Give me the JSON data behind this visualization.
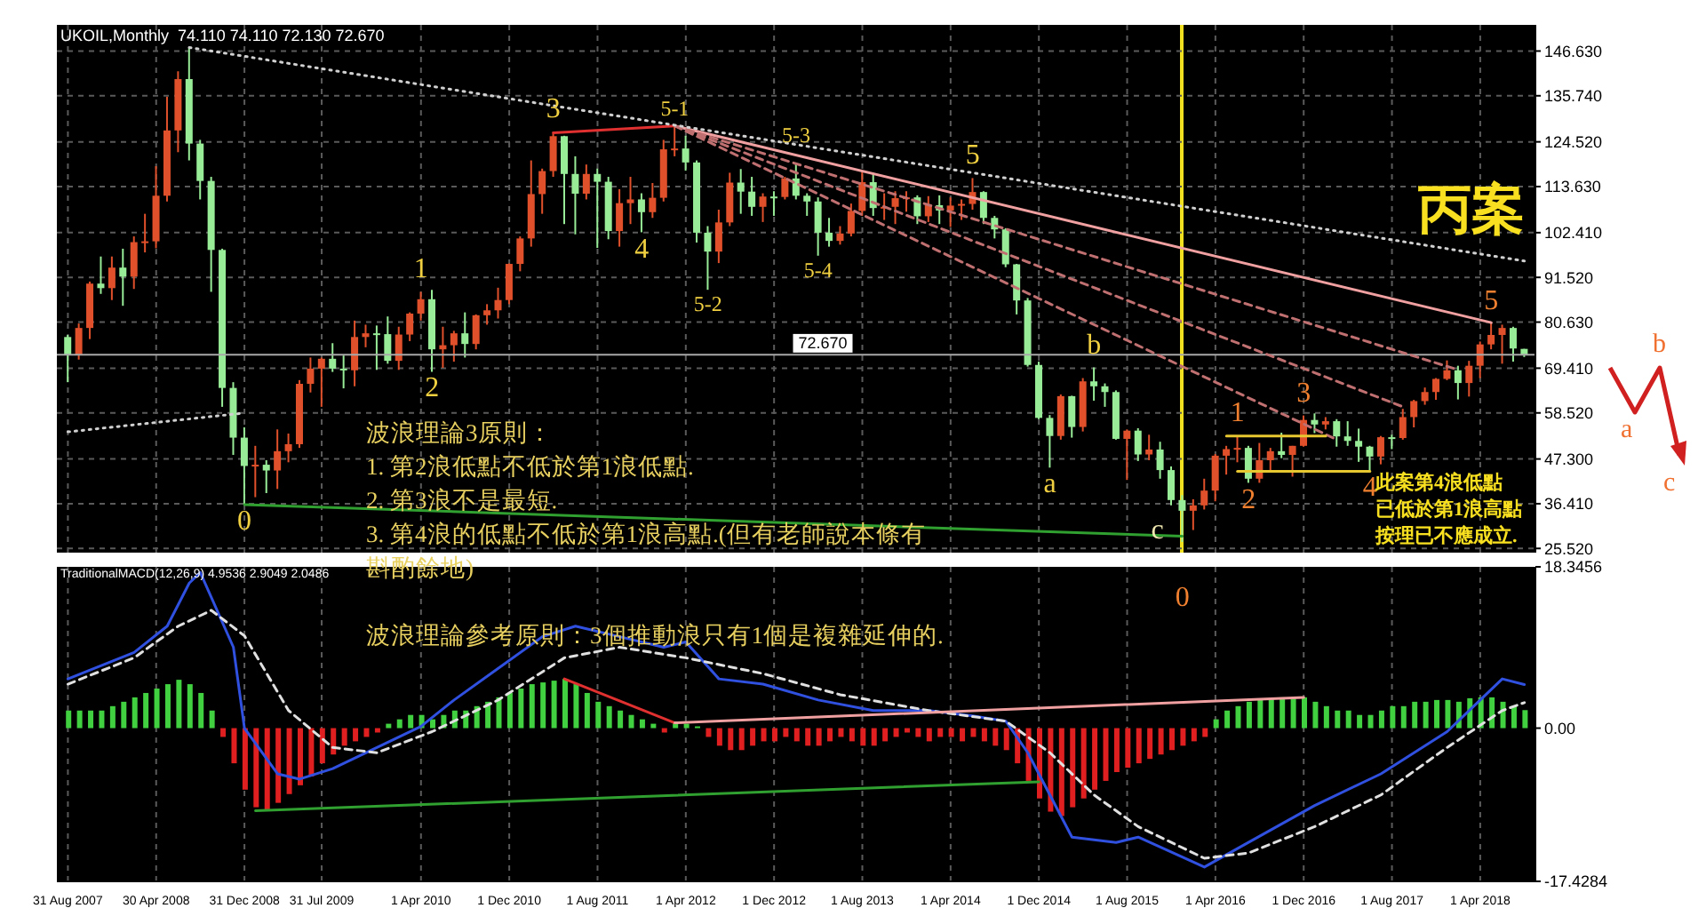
{
  "chart_data": [
    {
      "type": "candlestick",
      "title": "UKOIL,Monthly  74.110 74.110 72.130 72.670",
      "x": [
        "2007-08",
        "2007-09",
        "2007-10",
        "2007-11",
        "2007-12",
        "2008-01",
        "2008-02",
        "2008-03",
        "2008-04",
        "2008-05",
        "2008-06",
        "2008-07",
        "2008-08",
        "2008-09",
        "2008-10",
        "2008-11",
        "2008-12",
        "2009-01",
        "2009-02",
        "2009-03",
        "2009-04",
        "2009-05",
        "2009-06",
        "2009-07",
        "2009-08",
        "2009-09",
        "2009-10",
        "2009-11",
        "2009-12",
        "2010-01",
        "2010-02",
        "2010-03",
        "2010-04",
        "2010-05",
        "2010-06",
        "2010-07",
        "2010-08",
        "2010-09",
        "2010-10",
        "2010-11",
        "2010-12",
        "2011-01",
        "2011-02",
        "2011-03",
        "2011-04",
        "2011-05",
        "2011-06",
        "2011-07",
        "2011-08",
        "2011-09",
        "2011-10",
        "2011-11",
        "2011-12",
        "2012-01",
        "2012-02",
        "2012-03",
        "2012-04",
        "2012-05",
        "2012-06",
        "2012-07",
        "2012-08",
        "2012-09",
        "2012-10",
        "2012-11",
        "2012-12",
        "2013-01",
        "2013-02",
        "2013-03",
        "2013-04",
        "2013-05",
        "2013-06",
        "2013-07",
        "2013-08",
        "2013-09",
        "2013-10",
        "2013-11",
        "2013-12",
        "2014-01",
        "2014-02",
        "2014-03",
        "2014-04",
        "2014-05",
        "2014-06",
        "2014-07",
        "2014-08",
        "2014-09",
        "2014-10",
        "2014-11",
        "2014-12",
        "2015-01",
        "2015-02",
        "2015-03",
        "2015-04",
        "2015-05",
        "2015-06",
        "2015-07",
        "2015-08",
        "2015-09",
        "2015-10",
        "2015-11",
        "2015-12",
        "2016-01",
        "2016-02",
        "2016-03",
        "2016-04",
        "2016-05",
        "2016-06",
        "2016-07",
        "2016-08",
        "2016-09",
        "2016-10",
        "2016-11",
        "2016-12",
        "2017-01",
        "2017-02",
        "2017-03",
        "2017-04",
        "2017-05",
        "2017-06",
        "2017-07",
        "2017-08",
        "2017-09",
        "2017-10",
        "2017-11",
        "2017-12",
        "2018-01",
        "2018-02",
        "2018-03",
        "2018-04",
        "2018-05",
        "2018-06",
        "2018-07",
        "2018-08"
      ],
      "ohlc": [
        [
          77.0,
          77.5,
          66.0,
          72.7
        ],
        [
          72.7,
          80.3,
          71.5,
          79.2
        ],
        [
          79.2,
          90.5,
          76.5,
          90.0
        ],
        [
          90.0,
          96.6,
          87.5,
          88.9
        ],
        [
          88.9,
          96.6,
          86.0,
          93.9
        ],
        [
          93.9,
          98.5,
          84.6,
          91.7
        ],
        [
          91.7,
          101.5,
          88.7,
          100.1
        ],
        [
          100.1,
          107.0,
          97.6,
          100.3
        ],
        [
          100.3,
          118.6,
          98.6,
          111.4
        ],
        [
          111.4,
          135.5,
          110.0,
          127.3
        ],
        [
          127.3,
          141.7,
          122.0,
          139.8
        ],
        [
          139.8,
          147.5,
          120.0,
          124.1
        ],
        [
          124.1,
          125.0,
          110.5,
          115.0
        ],
        [
          115.0,
          116.0,
          88.0,
          98.2
        ],
        [
          98.2,
          98.5,
          60.0,
          64.6
        ],
        [
          64.6,
          66.0,
          48.3,
          52.5
        ],
        [
          52.5,
          55.0,
          36.2,
          45.6
        ],
        [
          45.6,
          50.5,
          38.0,
          45.9
        ],
        [
          45.9,
          47.0,
          39.0,
          44.5
        ],
        [
          44.5,
          54.5,
          40.0,
          49.2
        ],
        [
          49.2,
          53.5,
          46.5,
          50.9
        ],
        [
          50.9,
          66.5,
          50.0,
          65.6
        ],
        [
          65.6,
          72.0,
          63.5,
          69.3
        ],
        [
          69.3,
          72.0,
          60.0,
          71.7
        ],
        [
          71.7,
          75.5,
          68.5,
          69.3
        ],
        [
          69.3,
          72.5,
          64.5,
          68.9
        ],
        [
          68.9,
          81.0,
          65.0,
          77.0
        ],
        [
          77.0,
          80.0,
          74.5,
          77.9
        ],
        [
          77.9,
          79.8,
          69.0,
          77.7
        ],
        [
          77.7,
          82.0,
          70.5,
          71.2
        ],
        [
          71.2,
          79.5,
          69.0,
          77.6
        ],
        [
          77.6,
          83.0,
          76.0,
          82.7
        ],
        [
          82.7,
          88.0,
          81.0,
          86.2
        ],
        [
          86.2,
          88.5,
          68.5,
          74.0
        ],
        [
          74.0,
          79.5,
          69.5,
          75.0
        ],
        [
          75.0,
          78.5,
          71.0,
          77.9
        ],
        [
          77.9,
          83.0,
          72.0,
          75.3
        ],
        [
          75.3,
          82.5,
          74.0,
          82.3
        ],
        [
          82.3,
          85.0,
          80.0,
          83.5
        ],
        [
          83.5,
          89.0,
          81.5,
          86.0
        ],
        [
          86.0,
          94.9,
          85.0,
          94.8
        ],
        [
          94.8,
          101.5,
          93.0,
          101.0
        ],
        [
          101.0,
          120.0,
          99.0,
          111.8
        ],
        [
          111.8,
          118.0,
          107.0,
          117.4
        ],
        [
          117.4,
          127.0,
          116.0,
          125.9
        ],
        [
          125.9,
          126.0,
          104.5,
          116.7
        ],
        [
          116.7,
          121.0,
          102.0,
          111.9
        ],
        [
          111.9,
          119.0,
          110.5,
          116.7
        ],
        [
          116.7,
          118.0,
          98.7,
          114.8
        ],
        [
          114.8,
          116.0,
          100.8,
          102.8
        ],
        [
          102.8,
          113.0,
          99.0,
          109.6
        ],
        [
          109.6,
          116.0,
          104.5,
          110.5
        ],
        [
          110.5,
          112.0,
          102.5,
          107.4
        ],
        [
          107.4,
          114.5,
          106.0,
          110.9
        ],
        [
          110.9,
          125.0,
          110.0,
          122.7
        ],
        [
          122.7,
          128.4,
          121.0,
          122.9
        ],
        [
          122.9,
          126.0,
          117.5,
          119.5
        ],
        [
          119.5,
          120.0,
          100.0,
          102.4
        ],
        [
          102.4,
          104.0,
          88.5,
          97.8
        ],
        [
          97.8,
          108.0,
          95.0,
          104.9
        ],
        [
          104.9,
          117.0,
          104.0,
          114.6
        ],
        [
          114.6,
          117.9,
          107.0,
          112.4
        ],
        [
          112.4,
          116.0,
          106.5,
          108.7
        ],
        [
          108.7,
          112.0,
          105.0,
          111.2
        ],
        [
          111.2,
          112.5,
          106.5,
          111.1
        ],
        [
          111.1,
          116.0,
          110.5,
          115.6
        ],
        [
          115.6,
          119.2,
          110.5,
          111.4
        ],
        [
          111.4,
          112.0,
          106.5,
          110.0
        ],
        [
          110.0,
          111.0,
          96.8,
          102.4
        ],
        [
          102.4,
          106.0,
          99.0,
          100.4
        ],
        [
          100.4,
          104.0,
          99.5,
          102.2
        ],
        [
          102.2,
          109.5,
          101.5,
          107.7
        ],
        [
          107.7,
          117.3,
          106.5,
          114.7
        ],
        [
          114.7,
          117.0,
          106.5,
          108.4
        ],
        [
          108.4,
          112.0,
          105.5,
          108.7
        ],
        [
          108.7,
          112.5,
          104.5,
          110.8
        ],
        [
          110.8,
          112.5,
          107.5,
          111.0
        ],
        [
          111.0,
          111.5,
          104.5,
          106.4
        ],
        [
          106.4,
          111.3,
          105.0,
          109.1
        ],
        [
          109.1,
          111.5,
          104.5,
          107.8
        ],
        [
          107.8,
          111.0,
          103.8,
          109.0
        ],
        [
          109.0,
          110.5,
          105.5,
          109.4
        ],
        [
          109.4,
          115.7,
          108.0,
          112.3
        ],
        [
          112.3,
          112.5,
          104.5,
          106.0
        ],
        [
          106.0,
          106.5,
          101.0,
          103.2
        ],
        [
          103.2,
          103.5,
          94.0,
          94.7
        ],
        [
          94.7,
          94.8,
          82.5,
          85.9
        ],
        [
          85.9,
          86.5,
          69.8,
          70.2
        ],
        [
          70.2,
          71.0,
          57.0,
          57.3
        ],
        [
          57.3,
          58.0,
          45.2,
          52.9
        ],
        [
          52.9,
          63.0,
          52.0,
          62.6
        ],
        [
          62.6,
          62.7,
          52.5,
          55.1
        ],
        [
          55.1,
          67.0,
          54.0,
          66.2
        ],
        [
          66.2,
          69.6,
          61.5,
          65.0
        ],
        [
          65.0,
          65.7,
          60.0,
          63.6
        ],
        [
          63.6,
          64.0,
          52.0,
          52.2
        ],
        [
          52.2,
          54.5,
          42.2,
          54.2
        ],
        [
          54.2,
          54.8,
          46.8,
          48.4
        ],
        [
          48.4,
          53.2,
          47.0,
          49.6
        ],
        [
          49.6,
          51.5,
          42.5,
          44.6
        ],
        [
          44.6,
          45.5,
          36.0,
          37.3
        ],
        [
          37.3,
          38.5,
          27.1,
          34.7
        ],
        [
          34.7,
          37.5,
          30.0,
          36.0
        ],
        [
          36.0,
          42.5,
          35.0,
          39.6
        ],
        [
          39.6,
          48.5,
          37.0,
          48.1
        ],
        [
          48.1,
          50.5,
          43.5,
          49.7
        ],
        [
          49.7,
          52.9,
          46.5,
          50.0
        ],
        [
          50.0,
          50.5,
          41.5,
          42.5
        ],
        [
          42.5,
          51.2,
          41.5,
          47.0
        ],
        [
          47.0,
          50.0,
          44.5,
          49.2
        ],
        [
          49.2,
          53.7,
          47.5,
          48.3
        ],
        [
          48.3,
          50.5,
          43.0,
          50.5
        ],
        [
          50.5,
          57.9,
          50.3,
          56.8
        ],
        [
          56.8,
          58.4,
          53.6,
          55.7
        ],
        [
          55.7,
          57.5,
          54.5,
          56.5
        ],
        [
          56.5,
          57.0,
          50.3,
          52.8
        ],
        [
          52.8,
          56.5,
          50.5,
          51.7
        ],
        [
          51.7,
          54.7,
          46.6,
          50.3
        ],
        [
          50.3,
          50.5,
          44.3,
          47.9
        ],
        [
          47.9,
          52.9,
          46.0,
          52.6
        ],
        [
          52.6,
          53.2,
          49.7,
          52.4
        ],
        [
          52.4,
          59.5,
          52.0,
          57.5
        ],
        [
          57.5,
          61.7,
          55.0,
          61.4
        ],
        [
          61.4,
          64.7,
          60.5,
          63.6
        ],
        [
          63.6,
          67.0,
          61.7,
          66.8
        ],
        [
          66.8,
          71.3,
          66.5,
          68.9
        ],
        [
          68.9,
          70.0,
          61.8,
          65.8
        ],
        [
          65.8,
          71.2,
          62.5,
          70.0
        ],
        [
          70.0,
          75.9,
          67.0,
          75.2
        ],
        [
          75.2,
          80.5,
          74.0,
          77.5
        ],
        [
          77.5,
          80.0,
          70.5,
          79.2
        ],
        [
          79.2,
          79.5,
          71.0,
          74.2
        ],
        [
          74.11,
          74.11,
          72.13,
          72.67
        ]
      ],
      "colors": [
        "#98ec98",
        "#e0502a",
        "#e0502a",
        "#98ec98",
        "#e0502a",
        "#98ec98",
        "#e0502a",
        "#e0502a",
        "#e0502a",
        "#e0502a",
        "#e0502a",
        "#98ec98",
        "#98ec98",
        "#98ec98",
        "#98ec98",
        "#98ec98",
        "#98ec98",
        "#e0502a",
        "#98ec98",
        "#e0502a",
        "#e0502a",
        "#e0502a",
        "#e0502a",
        "#e0502a",
        "#98ec98",
        "#98ec98",
        "#e0502a",
        "#e0502a",
        "#98ec98",
        "#98ec98",
        "#e0502a",
        "#e0502a",
        "#e0502a",
        "#98ec98",
        "#e0502a",
        "#e0502a",
        "#98ec98",
        "#e0502a",
        "#e0502a",
        "#e0502a",
        "#e0502a",
        "#e0502a",
        "#e0502a",
        "#e0502a",
        "#e0502a",
        "#98ec98",
        "#98ec98",
        "#e0502a",
        "#98ec98",
        "#98ec98",
        "#e0502a",
        "#e0502a",
        "#98ec98",
        "#e0502a",
        "#e0502a",
        "#e0502a",
        "#98ec98",
        "#98ec98",
        "#98ec98",
        "#e0502a",
        "#e0502a",
        "#98ec98",
        "#98ec98",
        "#e0502a",
        "#98ec98",
        "#e0502a",
        "#98ec98",
        "#98ec98",
        "#98ec98",
        "#98ec98",
        "#e0502a",
        "#e0502a",
        "#e0502a",
        "#98ec98",
        "#e0502a",
        "#e0502a",
        "#e0502a",
        "#98ec98",
        "#e0502a",
        "#98ec98",
        "#e0502a",
        "#e0502a",
        "#e0502a",
        "#98ec98",
        "#98ec98",
        "#98ec98",
        "#98ec98",
        "#98ec98",
        "#98ec98",
        "#98ec98",
        "#e0502a",
        "#98ec98",
        "#e0502a",
        "#98ec98",
        "#98ec98",
        "#98ec98",
        "#e0502a",
        "#98ec98",
        "#e0502a",
        "#98ec98",
        "#98ec98",
        "#98ec98",
        "#e0502a",
        "#e0502a",
        "#e0502a",
        "#e0502a",
        "#e0502a",
        "#98ec98",
        "#e0502a",
        "#e0502a",
        "#98ec98",
        "#e0502a",
        "#e0502a",
        "#98ec98",
        "#e0502a",
        "#98ec98",
        "#98ec98",
        "#98ec98",
        "#98ec98",
        "#e0502a",
        "#98ec98",
        "#e0502a",
        "#e0502a",
        "#e0502a",
        "#e0502a",
        "#e0502a",
        "#98ec98",
        "#e0502a",
        "#e0502a",
        "#e0502a",
        "#e0502a",
        "#98ec98",
        "#98ec98"
      ],
      "series": [
        {
          "type": "line",
          "x": [
            "2011-04",
            "2012-03"
          ],
          "values": [
            126.7,
            128.4
          ],
          "color": "#e03030"
        },
        {
          "type": "line",
          "x": [
            "2012-03",
            "2018-05"
          ],
          "values": [
            128.4,
            80.5
          ],
          "color": "#f0a0a0"
        },
        {
          "type": "line",
          "x": [
            "2012-03",
            "2018-02"
          ],
          "values": [
            128.4,
            69.0
          ],
          "color": "#c07070",
          "line_style": "dashed"
        },
        {
          "type": "line",
          "x": [
            "2012-03",
            "2017-09"
          ],
          "values": [
            128.4,
            60.0
          ],
          "color": "#c07070",
          "line_style": "dashed"
        },
        {
          "type": "line",
          "x": [
            "2012-03",
            "2017-03"
          ],
          "values": [
            128.4,
            52.0
          ],
          "color": "#c07070",
          "line_style": "dashed"
        },
        {
          "type": "line",
          "x": [
            "2008-07",
            "2018-08"
          ],
          "values": [
            147.5,
            95.5
          ],
          "color": "#d0d0d0",
          "line_style": "dotted"
        },
        {
          "type": "line",
          "x": [
            "2007-08",
            "2008-12"
          ],
          "values": [
            53.9,
            58.5
          ],
          "color": "#d0d0d0",
          "line_style": "dotted"
        },
        {
          "type": "line",
          "x": [
            "2008-12",
            "2016-01"
          ],
          "values": [
            36.2,
            28.5
          ],
          "color": "#30a030"
        },
        {
          "type": "line",
          "x": [
            "2016-05",
            "2017-02"
          ],
          "values": [
            52.9,
            52.9
          ],
          "color": "#e8c830"
        },
        {
          "type": "line",
          "x": [
            "2016-06",
            "2017-06"
          ],
          "values": [
            44.3,
            44.3
          ],
          "color": "#e8c830"
        }
      ],
      "ylim": [
        24.5,
        153
      ],
      "xlim": [
        "2007-07",
        "2018-09"
      ],
      "yticks": [
        {
          "value": 25.52,
          "label": "25.520"
        },
        {
          "value": 36.41,
          "label": "36.410"
        },
        {
          "value": 47.3,
          "label": "47.300"
        },
        {
          "value": 58.52,
          "label": "58.520"
        },
        {
          "value": 69.41,
          "label": "69.410"
        },
        {
          "value": 80.63,
          "label": "80.630"
        },
        {
          "value": 91.52,
          "label": "91.520"
        },
        {
          "value": 102.41,
          "label": "102.410"
        },
        {
          "value": 113.63,
          "label": "113.630"
        },
        {
          "value": 124.52,
          "label": "124.520"
        },
        {
          "value": 135.74,
          "label": "135.740"
        },
        {
          "value": 146.63,
          "label": "146.630"
        }
      ],
      "xticks": [
        {
          "value": "2007-08",
          "label": null
        },
        {
          "value": "2008-04",
          "label": null
        },
        {
          "value": "2008-12",
          "label": null
        },
        {
          "value": "2009-07",
          "label": null
        },
        {
          "value": "2010-04",
          "label": null
        },
        {
          "value": "2010-12",
          "label": null
        },
        {
          "value": "2011-08",
          "label": null
        },
        {
          "value": "2012-04",
          "label": null
        },
        {
          "value": "2012-12",
          "label": null
        },
        {
          "value": "2013-08",
          "label": null
        },
        {
          "value": "2014-04",
          "label": null
        },
        {
          "value": "2014-12",
          "label": null
        },
        {
          "value": "2015-08",
          "label": null
        },
        {
          "value": "2016-04",
          "label": null
        },
        {
          "value": "2016-12",
          "label": null
        },
        {
          "value": "2017-08",
          "label": null
        },
        {
          "value": "2018-04",
          "label": null
        }
      ],
      "tick_labels": "y",
      "grid": true,
      "ref_lines": [
        {
          "axis": "x",
          "value": "2016-01",
          "color": "#f0e020"
        },
        {
          "axis": "y",
          "value": 72.67,
          "label": "72.670",
          "color": "#a8a8a8"
        }
      ],
      "annotations": [
        {
          "text": "0",
          "x": "2008-12",
          "y": 36.2
        },
        {
          "text": "1",
          "x": "2010-04",
          "y": 88.0
        },
        {
          "text": "2",
          "x": "2010-05",
          "y": 68.5
        },
        {
          "text": "3",
          "x": "2011-04",
          "y": 127.0
        },
        {
          "text": "4",
          "x": "2011-12",
          "y": 102.5
        },
        {
          "text": "5-1",
          "x": "2012-03",
          "y": 128.4
        },
        {
          "text": "5-2",
          "x": "2012-06",
          "y": 88.5
        },
        {
          "text": "5-3",
          "x": "2013-02",
          "y": 119.2
        },
        {
          "text": "5-4",
          "x": "2013-04",
          "y": 96.8
        },
        {
          "text": "5",
          "x": "2014-06",
          "y": 115.7
        },
        {
          "text": "a",
          "x": "2015-01",
          "y": 45.2
        },
        {
          "text": "b",
          "x": "2015-05",
          "y": 69.6
        },
        {
          "text": "c",
          "x": "2016-01",
          "y": 27.1
        },
        {
          "text": "0",
          "x": "2016-01",
          "y": 27.1
        },
        {
          "text": "1",
          "x": "2016-06",
          "y": 52.9
        },
        {
          "text": "2",
          "x": "2016-07",
          "y": 41.5
        },
        {
          "text": "3",
          "x": "2016-12",
          "y": 57.9
        },
        {
          "text": "4",
          "x": "2017-06",
          "y": 44.3
        },
        {
          "text": "5",
          "x": "2018-05",
          "y": 80.5
        },
        "丙案",
        "a",
        "b",
        "c",
        "波浪理論3原則：",
        "1. 第2浪低點不低於第1浪低點.",
        "2. 第3浪不是最短.",
        "3. 第4浪的低點不低於第1浪高點.(但有老師說本條有斟酌餘地)",
        "波浪理論參考原則：3個推動浪只有1個是複雜延伸的.",
        "此案第4浪低點",
        "已低於第1浪高點",
        "按理已不應成立."
      ]
    },
    {
      "type": "bar",
      "title": "TraditionalMACD(12,26,9) 4.9536 2.9049 2.0486",
      "x": [
        "2007-08",
        "2007-09",
        "2007-10",
        "2007-11",
        "2007-12",
        "2008-01",
        "2008-02",
        "2008-03",
        "2008-04",
        "2008-05",
        "2008-06",
        "2008-07",
        "2008-08",
        "2008-09",
        "2008-10",
        "2008-11",
        "2008-12",
        "2009-01",
        "2009-02",
        "2009-03",
        "2009-04",
        "2009-05",
        "2009-06",
        "2009-07",
        "2009-08",
        "2009-09",
        "2009-10",
        "2009-11",
        "2009-12",
        "2010-01",
        "2010-02",
        "2010-03",
        "2010-04",
        "2010-05",
        "2010-06",
        "2010-07",
        "2010-08",
        "2010-09",
        "2010-10",
        "2010-11",
        "2010-12",
        "2011-01",
        "2011-02",
        "2011-03",
        "2011-04",
        "2011-05",
        "2011-06",
        "2011-07",
        "2011-08",
        "2011-09",
        "2011-10",
        "2011-11",
        "2011-12",
        "2012-01",
        "2012-02",
        "2012-03",
        "2012-04",
        "2012-05",
        "2012-06",
        "2012-07",
        "2012-08",
        "2012-09",
        "2012-10",
        "2012-11",
        "2012-12",
        "2013-01",
        "2013-02",
        "2013-03",
        "2013-04",
        "2013-05",
        "2013-06",
        "2013-07",
        "2013-08",
        "2013-09",
        "2013-10",
        "2013-11",
        "2013-12",
        "2014-01",
        "2014-02",
        "2014-03",
        "2014-04",
        "2014-05",
        "2014-06",
        "2014-07",
        "2014-08",
        "2014-09",
        "2014-10",
        "2014-11",
        "2014-12",
        "2015-01",
        "2015-02",
        "2015-03",
        "2015-04",
        "2015-05",
        "2015-06",
        "2015-07",
        "2015-08",
        "2015-09",
        "2015-10",
        "2015-11",
        "2015-12",
        "2016-01",
        "2016-02",
        "2016-03",
        "2016-04",
        "2016-05",
        "2016-06",
        "2016-07",
        "2016-08",
        "2016-09",
        "2016-10",
        "2016-11",
        "2016-12",
        "2017-01",
        "2017-02",
        "2017-03",
        "2017-04",
        "2017-05",
        "2017-06",
        "2017-07",
        "2017-08",
        "2017-09",
        "2017-10",
        "2017-11",
        "2017-12",
        "2018-01",
        "2018-02",
        "2018-03",
        "2018-04",
        "2018-05",
        "2018-06",
        "2018-07",
        "2018-08"
      ],
      "series": [
        {
          "type": "bar",
          "values": [
            2,
            2,
            2,
            2,
            2.5,
            3,
            3.5,
            4,
            4.5,
            5,
            5.5,
            5,
            4,
            2,
            -1,
            -4,
            -7,
            -9,
            -9.4,
            -8.5,
            -7.5,
            -6.5,
            -5.5,
            -4,
            -3,
            -2,
            -1.5,
            -1,
            -0.5,
            0.5,
            1,
            1.5,
            1.5,
            1,
            1.5,
            2,
            2,
            2.5,
            3,
            3.5,
            4,
            4.5,
            5,
            5.2,
            5.4,
            5.6,
            5,
            4,
            3,
            2.5,
            2,
            1.5,
            1,
            0.5,
            -0.5,
            0.6,
            0.5,
            0.2,
            -1,
            -2,
            -2.5,
            -2.5,
            -2,
            -1.5,
            -1.5,
            -1,
            -1.5,
            -2,
            -2,
            -1.5,
            -1,
            -1.5,
            -2,
            -2,
            -1.5,
            -1,
            -0.5,
            -1,
            -1.5,
            -1,
            -1,
            -1.5,
            -1,
            -1.5,
            -2,
            -2.5,
            -4,
            -6,
            -8,
            -9.5,
            -10,
            -9,
            -8,
            -7,
            -6,
            -5,
            -4.5,
            -4,
            -3.5,
            -3,
            -2.5,
            -2,
            -1.5,
            -1,
            1,
            2,
            2.5,
            3,
            3.2,
            3.4,
            3.5,
            3.5,
            3.5,
            3,
            2.5,
            2,
            2,
            1.5,
            1.5,
            2,
            2.5,
            2.5,
            3,
            3,
            3.2,
            3.2,
            3,
            3.4,
            3.5,
            3.5,
            3,
            2.5,
            2.0486
          ],
          "colors": [
            "#40d040",
            "#40d040",
            "#40d040",
            "#40d040",
            "#40d040",
            "#40d040",
            "#40d040",
            "#40d040",
            "#40d040",
            "#40d040",
            "#40d040",
            "#40d040",
            "#40d040",
            "#40d040",
            "#e02020",
            "#e02020",
            "#e02020",
            "#e02020",
            "#e02020",
            "#e02020",
            "#e02020",
            "#e02020",
            "#e02020",
            "#e02020",
            "#e02020",
            "#e02020",
            "#e02020",
            "#e02020",
            "#e02020",
            "#40d040",
            "#40d040",
            "#40d040",
            "#40d040",
            "#40d040",
            "#40d040",
            "#40d040",
            "#40d040",
            "#40d040",
            "#40d040",
            "#40d040",
            "#40d040",
            "#40d040",
            "#40d040",
            "#40d040",
            "#40d040",
            "#40d040",
            "#40d040",
            "#40d040",
            "#40d040",
            "#40d040",
            "#40d040",
            "#40d040",
            "#40d040",
            "#40d040",
            "#e02020",
            "#40d040",
            "#40d040",
            "#40d040",
            "#e02020",
            "#e02020",
            "#e02020",
            "#e02020",
            "#e02020",
            "#e02020",
            "#e02020",
            "#e02020",
            "#e02020",
            "#e02020",
            "#e02020",
            "#e02020",
            "#e02020",
            "#e02020",
            "#e02020",
            "#e02020",
            "#e02020",
            "#e02020",
            "#e02020",
            "#e02020",
            "#e02020",
            "#e02020",
            "#e02020",
            "#e02020",
            "#e02020",
            "#e02020",
            "#e02020",
            "#e02020",
            "#e02020",
            "#e02020",
            "#e02020",
            "#e02020",
            "#e02020",
            "#e02020",
            "#e02020",
            "#e02020",
            "#e02020",
            "#e02020",
            "#e02020",
            "#e02020",
            "#e02020",
            "#e02020",
            "#e02020",
            "#e02020",
            "#e02020",
            "#e02020",
            "#40d040",
            "#40d040",
            "#40d040",
            "#40d040",
            "#40d040",
            "#40d040",
            "#40d040",
            "#40d040",
            "#40d040",
            "#40d040",
            "#40d040",
            "#40d040",
            "#40d040",
            "#40d040",
            "#40d040",
            "#40d040",
            "#40d040",
            "#40d040",
            "#40d040",
            "#40d040",
            "#40d040",
            "#40d040",
            "#40d040",
            "#40d040",
            "#40d040",
            "#40d040",
            "#40d040",
            "#40d040",
            "#40d040"
          ]
        },
        {
          "type": "line",
          "x": [
            "2007-08",
            "2008-02",
            "2008-05",
            "2008-07",
            "2008-08",
            "2008-11",
            "2008-12",
            "2009-03",
            "2009-05",
            "2009-08",
            "2009-12",
            "2010-04",
            "2010-07",
            "2010-11",
            "2011-03",
            "2011-06",
            "2011-10",
            "2012-02",
            "2012-04",
            "2012-07",
            "2012-11",
            "2013-04",
            "2013-09",
            "2014-02",
            "2014-06",
            "2014-09",
            "2014-11",
            "2015-01",
            "2015-03",
            "2015-07",
            "2015-09",
            "2016-03",
            "2016-07",
            "2017-01",
            "2017-07",
            "2018-01",
            "2018-04",
            "2018-06",
            "2018-08"
          ],
          "values": [
            5.6,
            8.6,
            11.6,
            16.5,
            17.7,
            9.2,
            0,
            -5.2,
            -5.8,
            -4.6,
            -2.2,
            0.2,
            3.2,
            6.8,
            10.4,
            11.6,
            10.4,
            9.2,
            9.8,
            5.6,
            5.0,
            3.2,
            2.0,
            2.0,
            1.4,
            0.8,
            -2.8,
            -7.6,
            -12.4,
            -13,
            -12.4,
            -15.8,
            -13,
            -8.8,
            -5.2,
            -0.4,
            3.2,
            5.6,
            4.9536
          ],
          "color": "#3050e0"
        },
        {
          "type": "line",
          "x": [
            "2007-08",
            "2008-02",
            "2008-06",
            "2008-09",
            "2008-12",
            "2009-04",
            "2009-08",
            "2009-12",
            "2010-05",
            "2010-11",
            "2011-05",
            "2011-10",
            "2012-04",
            "2012-11",
            "2013-06",
            "2014-02",
            "2014-09",
            "2015-01",
            "2015-05",
            "2015-09",
            "2016-03",
            "2016-07",
            "2017-01",
            "2017-07",
            "2018-01",
            "2018-06",
            "2018-08"
          ],
          "values": [
            5.0,
            8,
            11.6,
            13.4,
            10.5,
            2,
            -2.2,
            -2.8,
            -0.4,
            3.2,
            8,
            9.2,
            8,
            6.2,
            3.8,
            2,
            0.8,
            -2.8,
            -7.6,
            -11.2,
            -14.8,
            -14.2,
            -11.2,
            -7.6,
            -2.2,
            2,
            2.9049
          ],
          "color": "#e0e0e0",
          "line_style": "dashed"
        },
        {
          "type": "line",
          "x": [
            "2011-05",
            "2012-03"
          ],
          "values": [
            5.6,
            0.6
          ],
          "color": "#e03030"
        },
        {
          "type": "line",
          "x": [
            "2012-03",
            "2016-12"
          ],
          "values": [
            0.6,
            3.5
          ],
          "color": "#f0a0a0"
        },
        {
          "type": "line",
          "x": [
            "2009-01",
            "2014-12"
          ],
          "values": [
            -9.4,
            -6.1
          ],
          "color": "#30a030"
        }
      ],
      "ylim": [
        -17.4284,
        18.3456
      ],
      "xlim": [
        "2007-07",
        "2018-09"
      ],
      "yticks": [
        {
          "value": 18.3456,
          "label": "18.3456"
        },
        {
          "value": 0,
          "label": "0.00"
        },
        {
          "value": -17.4284,
          "label": "-17.4284"
        }
      ],
      "xticks": [
        {
          "value": "2007-08",
          "label": "31 Aug 2007"
        },
        {
          "value": "2008-04",
          "label": "30 Apr 2008"
        },
        {
          "value": "2008-12",
          "label": "31 Dec 2008"
        },
        {
          "value": "2009-07",
          "label": "31 Jul 2009"
        },
        {
          "value": "2010-04",
          "label": "1 Apr 2010"
        },
        {
          "value": "2010-12",
          "label": "1 Dec 2010"
        },
        {
          "value": "2011-08",
          "label": "1 Aug 2011"
        },
        {
          "value": "2012-04",
          "label": "1 Apr 2012"
        },
        {
          "value": "2012-12",
          "label": "1 Dec 2012"
        },
        {
          "value": "2013-08",
          "label": "1 Aug 2013"
        },
        {
          "value": "2014-04",
          "label": "1 Apr 2014"
        },
        {
          "value": "2014-12",
          "label": "1 Dec 2014"
        },
        {
          "value": "2015-08",
          "label": "1 Aug 2015"
        },
        {
          "value": "2016-04",
          "label": "1 Apr 2016"
        },
        {
          "value": "2016-12",
          "label": "1 Dec 2016"
        },
        {
          "value": "2017-08",
          "label": "1 Aug 2017"
        },
        {
          "value": "2018-04",
          "label": "1 Apr 2018"
        }
      ],
      "grid": "x"
    }
  ]
}
